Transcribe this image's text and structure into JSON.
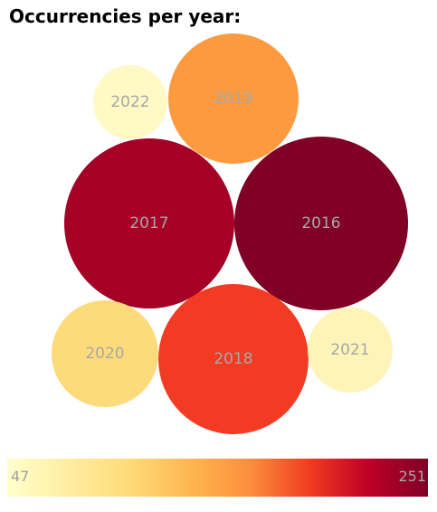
{
  "title": "Occurrencies per year:",
  "chart_data": {
    "type": "bubble",
    "items": [
      {
        "label": "2022",
        "color": "#fff9c5"
      },
      {
        "label": "2019",
        "color": "#fd9a40"
      },
      {
        "label": "2017",
        "color": "#a50026"
      },
      {
        "label": "2016",
        "color": "#800026"
      },
      {
        "label": "2020",
        "color": "#fedb7a"
      },
      {
        "label": "2018",
        "color": "#f23b22"
      },
      {
        "label": "2021",
        "color": "#fff4b8"
      }
    ],
    "color_scale": {
      "min": "47",
      "max": "251"
    }
  }
}
